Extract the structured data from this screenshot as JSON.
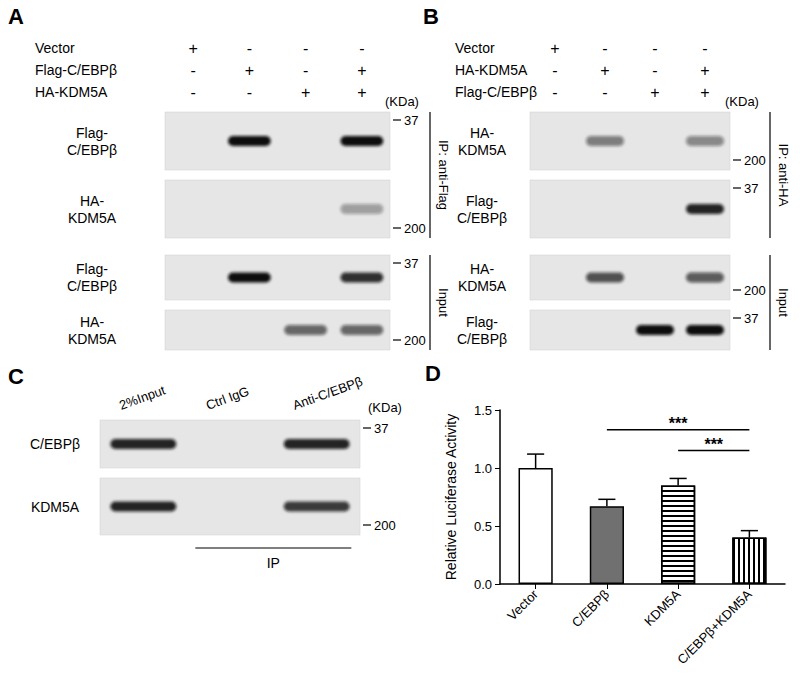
{
  "figure": {
    "panels": [
      {
        "label": "A",
        "kda": "(KDa)",
        "rows": [
          {
            "name": "Vector",
            "signs": [
              "+",
              "-",
              "-",
              "-"
            ]
          },
          {
            "name": "Flag-C/EBPβ",
            "signs": [
              "-",
              "+",
              "-",
              "+"
            ]
          },
          {
            "name": "HA-KDM5A",
            "signs": [
              "-",
              "-",
              "+",
              "+"
            ]
          }
        ],
        "groups": [
          {
            "label": "IP: anti-Flag",
            "blots": [
              {
                "label": [
                  "Flag-",
                  "C/EBPβ"
                ],
                "marker": 37,
                "bands": [
                  0,
                  1,
                  0,
                  1
                ]
              },
              {
                "label": [
                  "HA-",
                  "KDM5A"
                ],
                "marker": 200,
                "bands": [
                  0,
                  0,
                  0,
                  0.35
                ]
              }
            ]
          },
          {
            "label": "Input",
            "blots": [
              {
                "label": [
                  "Flag-",
                  "C/EBPβ"
                ],
                "marker": 37,
                "bands": [
                  0,
                  1,
                  0,
                  0.85
                ]
              },
              {
                "label": [
                  "HA-",
                  "KDM5A"
                ],
                "marker": 200,
                "bands": [
                  0,
                  0,
                  0.6,
                  0.6
                ]
              }
            ]
          }
        ]
      },
      {
        "label": "B",
        "kda": "(KDa)",
        "rows": [
          {
            "name": "Vector",
            "signs": [
              "+",
              "-",
              "-",
              "-"
            ]
          },
          {
            "name": "HA-KDM5A",
            "signs": [
              "-",
              "+",
              "-",
              "+"
            ]
          },
          {
            "name": "Flag-C/EBPβ",
            "signs": [
              "-",
              "-",
              "+",
              "+"
            ]
          }
        ],
        "groups": [
          {
            "label": "IP: anti-HA",
            "blots": [
              {
                "label": [
                  "HA-",
                  "KDM5A"
                ],
                "marker": 200,
                "bands": [
                  0,
                  0.5,
                  0,
                  0.45
                ]
              },
              {
                "label": [
                  "Flag-",
                  "C/EBPβ"
                ],
                "marker": 37,
                "bands": [
                  0,
                  0,
                  0,
                  0.9
                ]
              }
            ]
          },
          {
            "label": "Input",
            "blots": [
              {
                "label": [
                  "HA-",
                  "KDM5A"
                ],
                "marker": 200,
                "bands": [
                  0,
                  0.7,
                  0,
                  0.65
                ]
              },
              {
                "label": [
                  "Flag-",
                  "C/EBPβ"
                ],
                "marker": 37,
                "bands": [
                  0,
                  0,
                  1,
                  1
                ]
              }
            ]
          }
        ]
      },
      {
        "label": "C",
        "kda": "(KDa)",
        "lanes": [
          "2%Input",
          "Ctrl IgG",
          "Anti-C/EBPβ"
        ],
        "blots": [
          {
            "label": [
              "C/EBPβ"
            ],
            "marker": 37,
            "bands": [
              0.9,
              0,
              0.9
            ]
          },
          {
            "label": [
              "KDM5A"
            ],
            "marker": 200,
            "bands": [
              0.9,
              0,
              0.8
            ]
          }
        ],
        "underline": {
          "label": "IP",
          "lanes": [
            "Ctrl IgG",
            "Anti-C/EBPβ"
          ]
        }
      }
    ]
  },
  "chart_data": {
    "type": "bar",
    "title": "D",
    "categories": [
      "Vector",
      "C/EBPβ",
      "KDM5A",
      "C/EBPβ+KDM5A"
    ],
    "values": [
      1.0,
      0.67,
      0.85,
      0.4
    ],
    "errors": [
      0.12,
      0.06,
      0.06,
      0.06
    ],
    "colors": [
      "#ffffff",
      "#707070",
      "#ffffff",
      "#ffffff"
    ],
    "ylabel": "Relative Luciferase Activity",
    "ylim": [
      0,
      1.5
    ],
    "yticks": [
      {
        "value": 0,
        "label": "0.0"
      },
      0.5,
      {
        "value": 1,
        "label": "1.0"
      },
      1.5
    ],
    "annotations": [
      {
        "from": "C/EBPβ",
        "to": "C/EBPβ+KDM5A",
        "y": 1.33,
        "text": "***"
      },
      {
        "from": "KDM5A",
        "to": "C/EBPβ+KDM5A",
        "y": 1.15,
        "text": "***"
      }
    ],
    "grid": false
  }
}
